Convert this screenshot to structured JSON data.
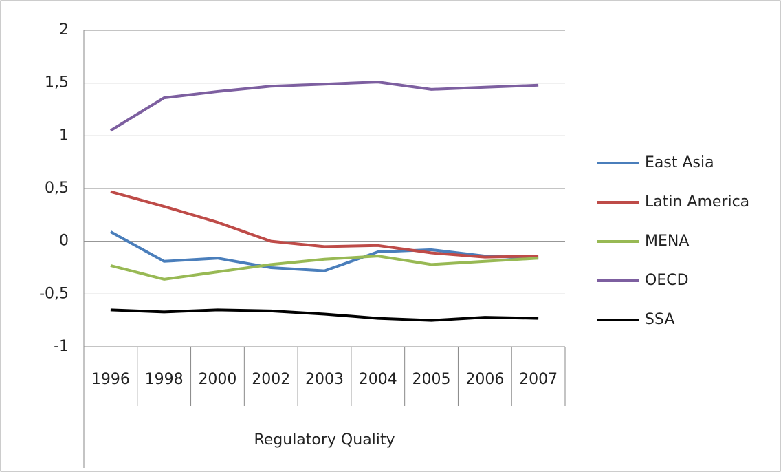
{
  "chart_data": {
    "type": "line",
    "x_label": "Regulatory Quality",
    "categories": [
      "1996",
      "1998",
      "2000",
      "2002",
      "2003",
      "2004",
      "2005",
      "2006",
      "2007"
    ],
    "series": [
      {
        "name": "East Asia",
        "color": "#4a7ebb",
        "values": [
          0.09,
          -0.19,
          -0.16,
          -0.25,
          -0.28,
          -0.1,
          -0.08,
          -0.14,
          -0.16
        ]
      },
      {
        "name": "Latin America",
        "color": "#be4b48",
        "values": [
          0.47,
          0.33,
          0.18,
          0.0,
          -0.05,
          -0.04,
          -0.11,
          -0.15,
          -0.14
        ]
      },
      {
        "name": "MENA",
        "color": "#98b954",
        "values": [
          -0.23,
          -0.36,
          -0.29,
          -0.22,
          -0.17,
          -0.14,
          -0.22,
          -0.19,
          -0.16
        ]
      },
      {
        "name": "OECD",
        "color": "#7d5fa0",
        "values": [
          1.05,
          1.36,
          1.42,
          1.47,
          1.49,
          1.51,
          1.44,
          1.46,
          1.48
        ]
      },
      {
        "name": "SSA",
        "color": "#000000",
        "values": [
          -0.65,
          -0.67,
          -0.65,
          -0.66,
          -0.69,
          -0.73,
          -0.75,
          -0.72,
          -0.73
        ]
      }
    ],
    "ylim": [
      -1,
      2
    ],
    "yticks": [
      -1,
      {
        "value": -0.5,
        "label": "-0,5"
      },
      0,
      {
        "value": 0.5,
        "label": "0,5"
      },
      1,
      {
        "value": 1.5,
        "label": "1,5"
      },
      2
    ],
    "grid": true,
    "legend": "right"
  }
}
